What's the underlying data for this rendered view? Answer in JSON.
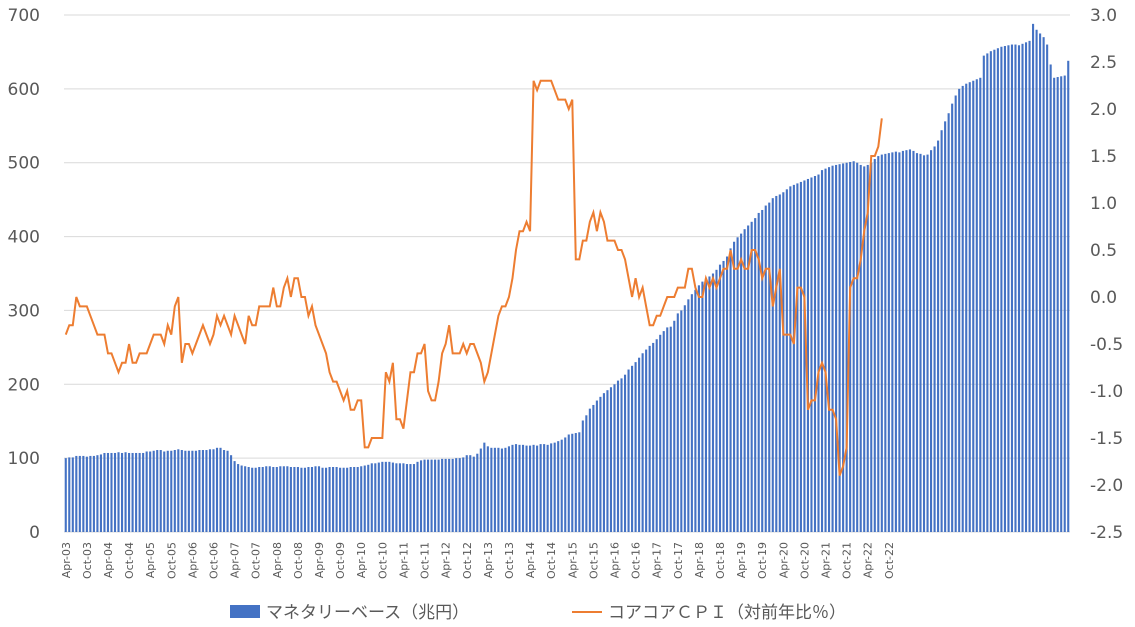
{
  "chart_data": {
    "type": "bar+line",
    "title": "",
    "xlabel": "",
    "ylabel_left": "",
    "ylabel_right": "",
    "x_tick_labels": [
      "Apr-03",
      "Oct-03",
      "Apr-04",
      "Oct-04",
      "Apr-05",
      "Oct-05",
      "Apr-06",
      "Oct-06",
      "Apr-07",
      "Oct-07",
      "Apr-08",
      "Oct-08",
      "Apr-09",
      "Oct-09",
      "Apr-10",
      "Oct-10",
      "Apr-11",
      "Oct-11",
      "Apr-12",
      "Oct-12",
      "Apr-13",
      "Oct-13",
      "Apr-14",
      "Oct-14",
      "Apr-15",
      "Oct-15",
      "Apr-16",
      "Oct-16",
      "Apr-17",
      "Oct-17",
      "Apr-18",
      "Oct-18",
      "Apr-19",
      "Oct-19",
      "Apr-20",
      "Oct-20",
      "Apr-21",
      "Oct-21",
      "Apr-22",
      "Oct-22"
    ],
    "y_left": {
      "min": 0,
      "max": 700,
      "step": 100,
      "tick_labels": [
        "0",
        "100",
        "200",
        "300",
        "400",
        "500",
        "600",
        "700"
      ]
    },
    "y_right": {
      "min": -2.5,
      "max": 3.0,
      "step": 0.5,
      "tick_labels": [
        "-2.5",
        "-2.0",
        "-1.5",
        "-1.0",
        "-0.5",
        "0.0",
        "0.5",
        "1.0",
        "1.5",
        "2.0",
        "2.5",
        "3.0"
      ]
    },
    "grid": true,
    "legend_position": "bottom",
    "series": [
      {
        "name": "マネタリーベース（兆円）",
        "type": "bar",
        "axis": "left",
        "color": "#4472C4",
        "monthly_from": "Apr-03",
        "values": [
          100,
          101,
          101,
          103,
          103,
          103,
          102,
          103,
          103,
          104,
          105,
          107,
          107,
          107,
          107,
          108,
          107,
          108,
          107,
          107,
          107,
          107,
          107,
          109,
          109,
          110,
          111,
          111,
          109,
          110,
          110,
          111,
          112,
          111,
          110,
          110,
          110,
          110,
          111,
          111,
          111,
          112,
          112,
          114,
          114,
          111,
          110,
          104,
          96,
          92,
          90,
          89,
          88,
          87,
          87,
          88,
          88,
          89,
          89,
          88,
          88,
          89,
          89,
          89,
          88,
          88,
          88,
          87,
          87,
          88,
          88,
          89,
          89,
          87,
          87,
          88,
          88,
          88,
          87,
          87,
          87,
          88,
          88,
          88,
          89,
          90,
          91,
          93,
          93,
          94,
          95,
          95,
          95,
          94,
          93,
          93,
          93,
          92,
          92,
          92,
          95,
          97,
          98,
          98,
          98,
          98,
          98,
          99,
          99,
          99,
          99,
          100,
          100,
          101,
          104,
          104,
          102,
          106,
          113,
          121,
          116,
          114,
          114,
          114,
          113,
          114,
          116,
          118,
          119,
          118,
          118,
          117,
          117,
          118,
          117,
          119,
          119,
          118,
          120,
          121,
          123,
          125,
          128,
          132,
          133,
          134,
          135,
          151,
          158,
          167,
          172,
          178,
          183,
          188,
          192,
          196,
          200,
          205,
          208,
          213,
          220,
          225,
          230,
          236,
          242,
          247,
          252,
          256,
          261,
          267,
          272,
          277,
          278,
          286,
          296,
          300,
          307,
          315,
          322,
          328,
          334,
          339,
          343,
          346,
          350,
          355,
          362,
          367,
          373,
          384,
          393,
          399,
          404,
          410,
          415,
          420,
          425,
          432,
          436,
          442,
          446,
          452,
          455,
          457,
          460,
          464,
          468,
          470,
          472,
          474,
          476,
          478,
          480,
          482,
          484,
          490,
          492,
          494,
          496,
          497,
          498,
          499,
          500,
          501,
          502,
          500,
          497,
          495,
          497,
          500,
          505,
          509,
          511,
          512,
          513,
          514,
          515,
          514,
          516,
          517,
          518,
          516,
          513,
          512,
          510,
          511,
          517,
          522,
          530,
          544,
          556,
          567,
          580,
          591,
          600,
          604,
          607,
          609,
          611,
          613,
          615,
          645,
          648,
          651,
          653,
          655,
          657,
          658,
          659,
          660,
          660,
          659,
          661,
          663,
          665,
          688,
          680,
          675,
          670,
          660,
          633,
          615,
          616,
          617,
          618,
          638
        ]
      },
      {
        "name": "コアコアＣＰＩ（対前年比％）",
        "type": "line",
        "axis": "right",
        "color": "#ED7D31",
        "monthly_from": "Apr-03",
        "values": [
          -0.4,
          -0.3,
          -0.3,
          0.0,
          -0.1,
          -0.1,
          -0.1,
          -0.2,
          -0.3,
          -0.4,
          -0.4,
          -0.4,
          -0.6,
          -0.6,
          -0.7,
          -0.8,
          -0.7,
          -0.7,
          -0.5,
          -0.7,
          -0.7,
          -0.6,
          -0.6,
          -0.6,
          -0.5,
          -0.4,
          -0.4,
          -0.4,
          -0.5,
          -0.3,
          -0.4,
          -0.1,
          0.0,
          -0.7,
          -0.5,
          -0.5,
          -0.6,
          -0.5,
          -0.4,
          -0.3,
          -0.4,
          -0.5,
          -0.4,
          -0.2,
          -0.3,
          -0.2,
          -0.3,
          -0.4,
          -0.2,
          -0.3,
          -0.4,
          -0.5,
          -0.2,
          -0.3,
          -0.3,
          -0.1,
          -0.1,
          -0.1,
          -0.1,
          0.1,
          -0.1,
          -0.1,
          0.1,
          0.2,
          0.0,
          0.2,
          0.2,
          0.0,
          0.0,
          -0.2,
          -0.1,
          -0.3,
          -0.4,
          -0.5,
          -0.6,
          -0.8,
          -0.9,
          -0.9,
          -1.0,
          -1.1,
          -1.0,
          -1.2,
          -1.2,
          -1.1,
          -1.1,
          -1.6,
          -1.6,
          -1.5,
          -1.5,
          -1.5,
          -1.5,
          -0.8,
          -0.9,
          -0.7,
          -1.3,
          -1.3,
          -1.4,
          -1.1,
          -0.8,
          -0.8,
          -0.6,
          -0.6,
          -0.5,
          -1.0,
          -1.1,
          -1.1,
          -0.9,
          -0.6,
          -0.5,
          -0.3,
          -0.6,
          -0.6,
          -0.6,
          -0.5,
          -0.6,
          -0.5,
          -0.5,
          -0.6,
          -0.7,
          -0.9,
          -0.8,
          -0.6,
          -0.4,
          -0.2,
          -0.1,
          -0.1,
          0.0,
          0.2,
          0.5,
          0.7,
          0.7,
          0.8,
          0.7,
          2.3,
          2.2,
          2.3,
          2.3,
          2.3,
          2.3,
          2.2,
          2.1,
          2.1,
          2.1,
          2.0,
          2.1,
          0.4,
          0.4,
          0.6,
          0.6,
          0.8,
          0.9,
          0.7,
          0.9,
          0.8,
          0.6,
          0.6,
          0.6,
          0.5,
          0.5,
          0.4,
          0.2,
          0.0,
          0.2,
          0.0,
          0.1,
          -0.1,
          -0.3,
          -0.3,
          -0.2,
          -0.2,
          -0.1,
          0.0,
          0.0,
          0.0,
          0.1,
          0.1,
          0.1,
          0.3,
          0.3,
          0.1,
          0.0,
          0.0,
          0.2,
          0.1,
          0.2,
          0.1,
          0.2,
          0.3,
          0.3,
          0.5,
          0.3,
          0.3,
          0.4,
          0.3,
          0.3,
          0.5,
          0.5,
          0.4,
          0.2,
          0.3,
          0.3,
          -0.1,
          0.1,
          0.3,
          -0.4,
          -0.4,
          -0.4,
          -0.5,
          0.1,
          0.1,
          0.0,
          -1.2,
          -1.1,
          -1.1,
          -0.8,
          -0.7,
          -0.8,
          -1.2,
          -1.2,
          -1.3,
          -1.9,
          -1.8,
          -1.6,
          0.1,
          0.2,
          0.2,
          0.4,
          0.7,
          0.9,
          1.5,
          1.5,
          1.6,
          1.9
        ]
      }
    ]
  },
  "legend": {
    "bar_label": "マネタリーベース（兆円）",
    "line_label": "コアコアＣＰＩ（対前年比％）"
  }
}
